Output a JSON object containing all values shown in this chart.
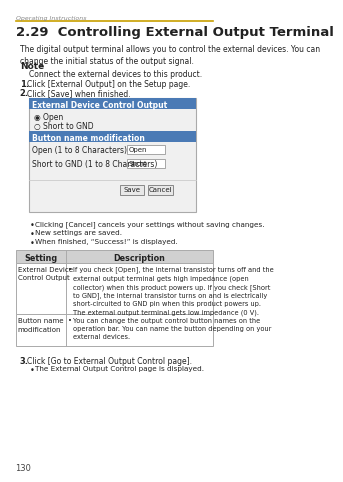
{
  "bg_color": "#ffffff",
  "page_header": "Operating Instructions",
  "header_line_color": "#c8a000",
  "title": "2.29  Controlling External Output Terminal",
  "intro_text": "The digital output terminal allows you to control the external devices. You can\nchange the initial status of the output signal.",
  "note_label": "Note",
  "note_text": "Connect the external devices to this product.",
  "steps": [
    "Click [External Output] on the Setup page.",
    "Click [Save] when finished."
  ],
  "ui_box": {
    "header1": "External Device Control Output",
    "header1_bg": "#4a7ab5",
    "header1_fg": "#ffffff",
    "radio1": "◉ Open",
    "radio2": "○ Short to GND",
    "header2": "Button name modification",
    "header2_bg": "#4a7ab5",
    "header2_fg": "#ffffff",
    "field1_label": "Open (1 to 8 Characters)",
    "field1_value": "Open",
    "field2_label": "Short to GND (1 to 8 Characters)",
    "field2_value": "Short",
    "btn_save": "Save",
    "btn_cancel": "Cancel",
    "box_bg": "#f0f0f0",
    "border_color": "#aaaaaa"
  },
  "bullets": [
    "Clicking [Cancel] cancels your settings without saving changes.",
    "New settings are saved.",
    "When finished, “Success!” is displayed."
  ],
  "table": {
    "header_bg": "#d0d0d0",
    "col1_header": "Setting",
    "col2_header": "Description",
    "rows": [
      {
        "setting": "External Device\nControl Output",
        "description": "If you check [Open], the internal transistor turns off and the\nexternal output terminal gets high impedance (open\ncollector) when this product powers up. If you check [Short\nto GND], the internal transistor turns on and is electrically\nshort-circuited to GND pin when this product powers up.\nThe external output terminal gets low impedance (0 V)."
      },
      {
        "setting": "Button name\nmodification",
        "description": "You can change the output control button names on the\noperation bar. You can name the button depending on your\nexternal devices."
      }
    ]
  },
  "step3": "Click [Go to External Output Control page].",
  "step3_bullet": "The External Output Control page is displayed.",
  "footer": "130"
}
